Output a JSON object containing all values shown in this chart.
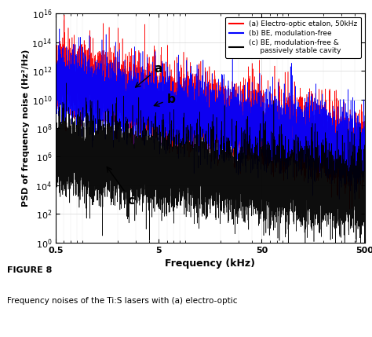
{
  "xlim": [
    0.5,
    500
  ],
  "ylim": [
    1.0,
    1e+16
  ],
  "xlabel": "Frequency (kHz)",
  "ylabel": "PSD of frequency noise (Hz²/Hz)",
  "xticks": [
    0.5,
    5,
    50,
    500
  ],
  "xtick_labels": [
    "0.5",
    "5",
    "50",
    "500"
  ],
  "yticks": [
    1.0,
    100.0,
    10000.0,
    1000000.0,
    100000000.0,
    10000000000.0,
    1000000000000.0,
    100000000000000.0,
    1e+16
  ],
  "legend_entries": [
    "(a) Electro-optic etalon, 50kHz",
    "(b) BE, modulation-free",
    "(c) BE, modulation-free &\n     passively stable cavity"
  ],
  "legend_colors": [
    "#ff0000",
    "#0000ff",
    "#000000"
  ],
  "figure_label": "FIGURE 8",
  "figure_caption": "Frequency noises of the Ti:S lasers with (a) electro-optic",
  "bg_color": "#ffffff",
  "plot_bg_color": "#ffffff",
  "grid_color": "#cccccc"
}
